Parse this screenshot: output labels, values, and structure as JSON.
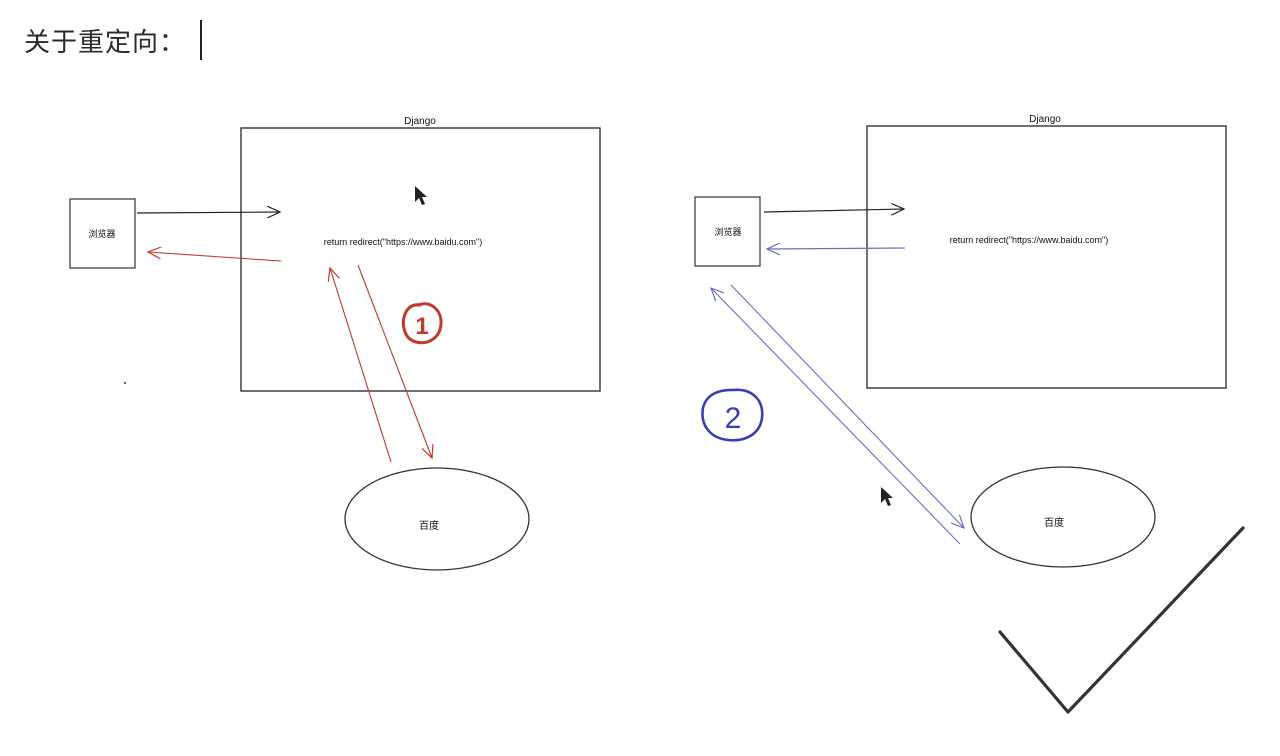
{
  "heading": {
    "text": "关于重定向："
  },
  "diagrams": [
    {
      "server_label": "Django",
      "browser_label": "浏览器",
      "code_text": "return redirect(\"https://www.baidu.com\")",
      "target_label": "百度",
      "step_number": "1",
      "arrow_color": "#c0392b",
      "number_color": "#c0392b"
    },
    {
      "server_label": "Django",
      "browser_label": "浏览器",
      "code_text": "return redirect(\"https://www.baidu.com\")",
      "target_label": "百度",
      "step_number": "2",
      "arrow_color": "#6a6fc4",
      "number_color": "#3a3fb0"
    }
  ],
  "icons": {
    "checkmark": "checkmark-icon",
    "cursor": "mouse-pointer-icon"
  }
}
